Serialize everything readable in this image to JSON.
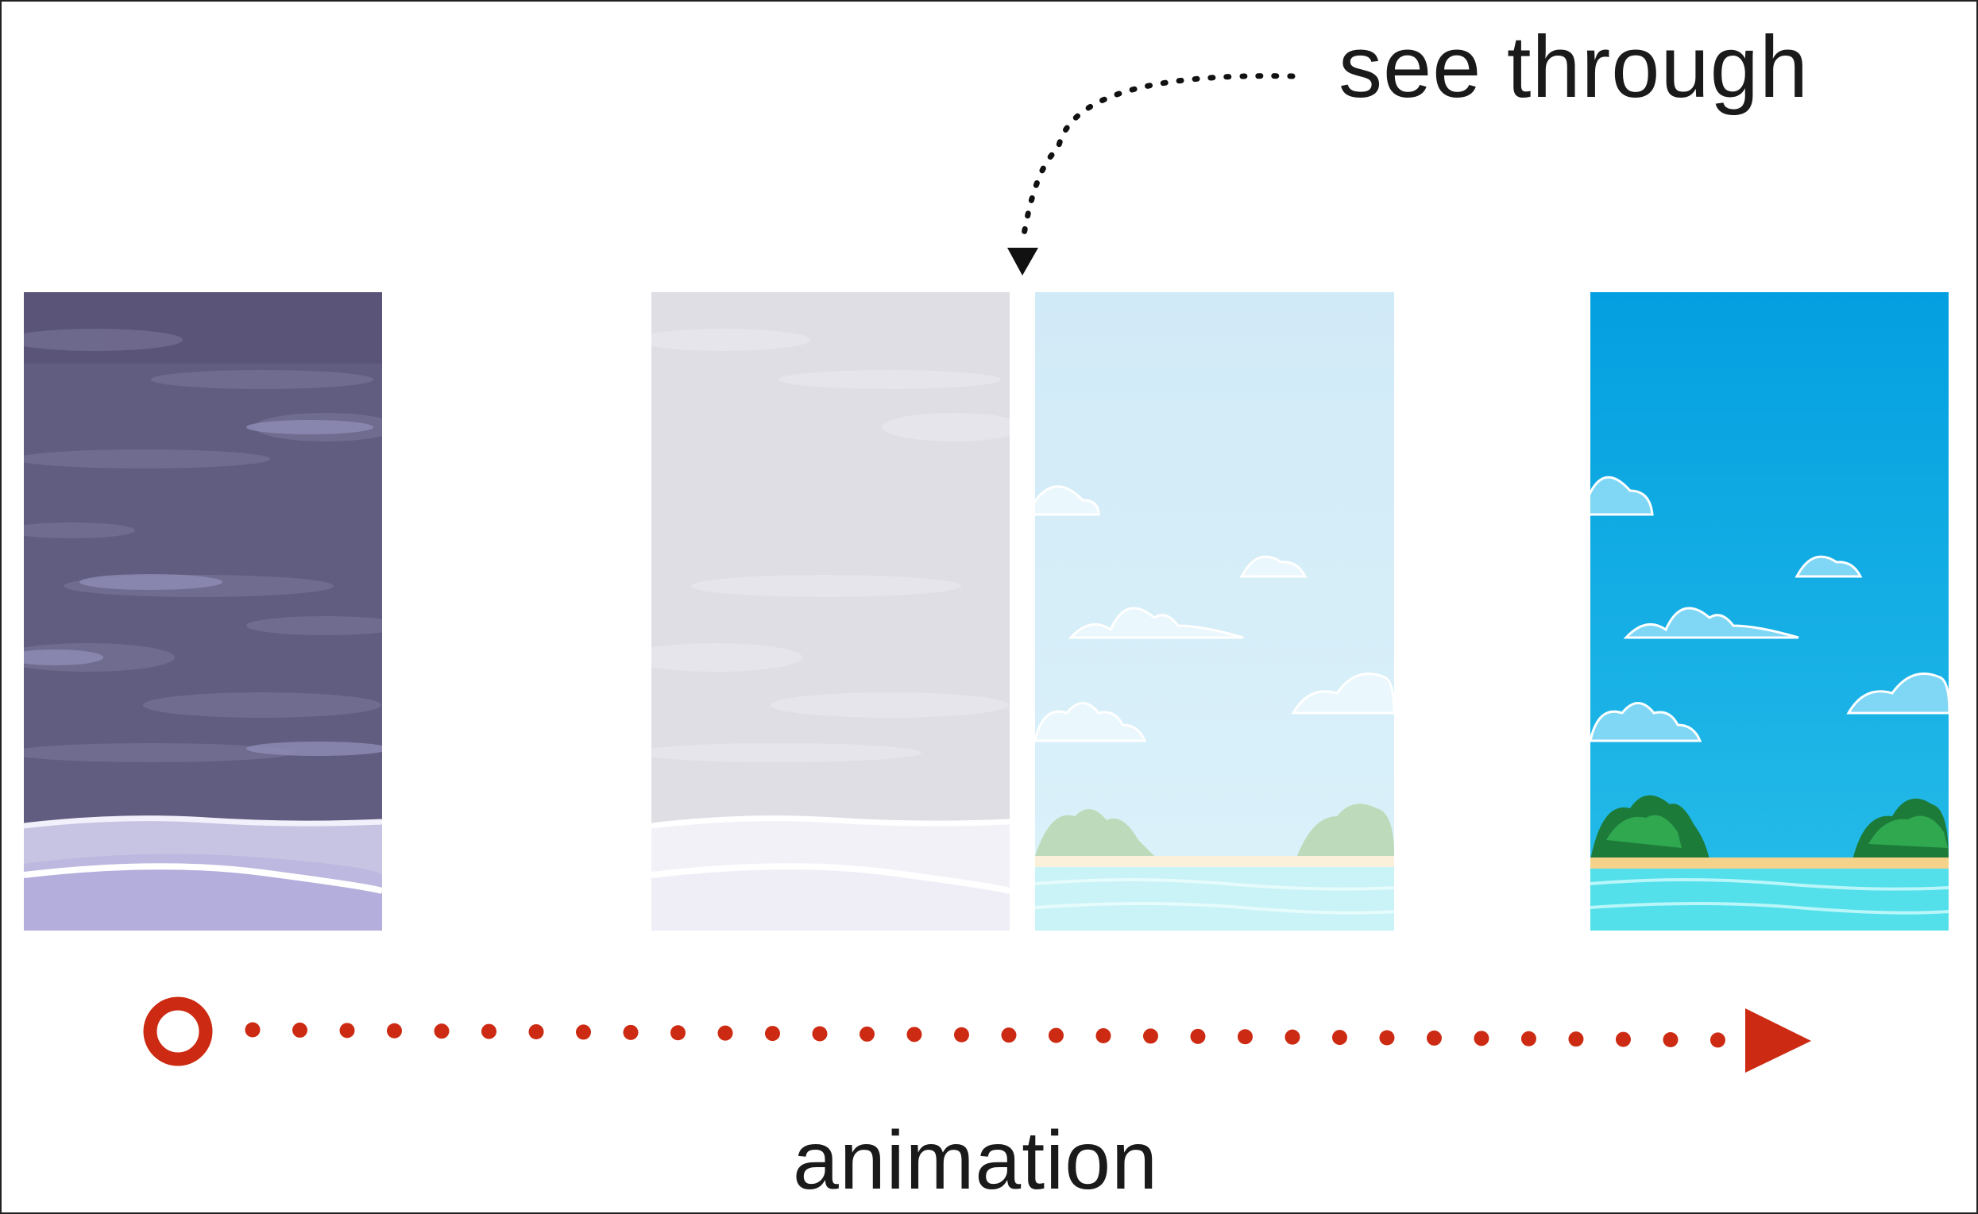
{
  "labels": {
    "see_through": "see through",
    "animation": "animation"
  },
  "panels": [
    {
      "name": "stormy-sky",
      "opacity": 1.0
    },
    {
      "name": "stormy-sky-faded",
      "opacity": 0.2
    },
    {
      "name": "sunny-beach-faded",
      "opacity": 0.2
    },
    {
      "name": "sunny-beach",
      "opacity": 1.0
    }
  ],
  "colors": {
    "storm_sky": "#615d80",
    "storm_sea": "#b9b6da",
    "sunny_sky_top": "#039fe0",
    "sunny_sky_bottom": "#27bde9",
    "sea": "#53e0ea",
    "sand": "#f4d289",
    "arrow_red": "#cc2a12",
    "arrow_black": "#111111"
  }
}
